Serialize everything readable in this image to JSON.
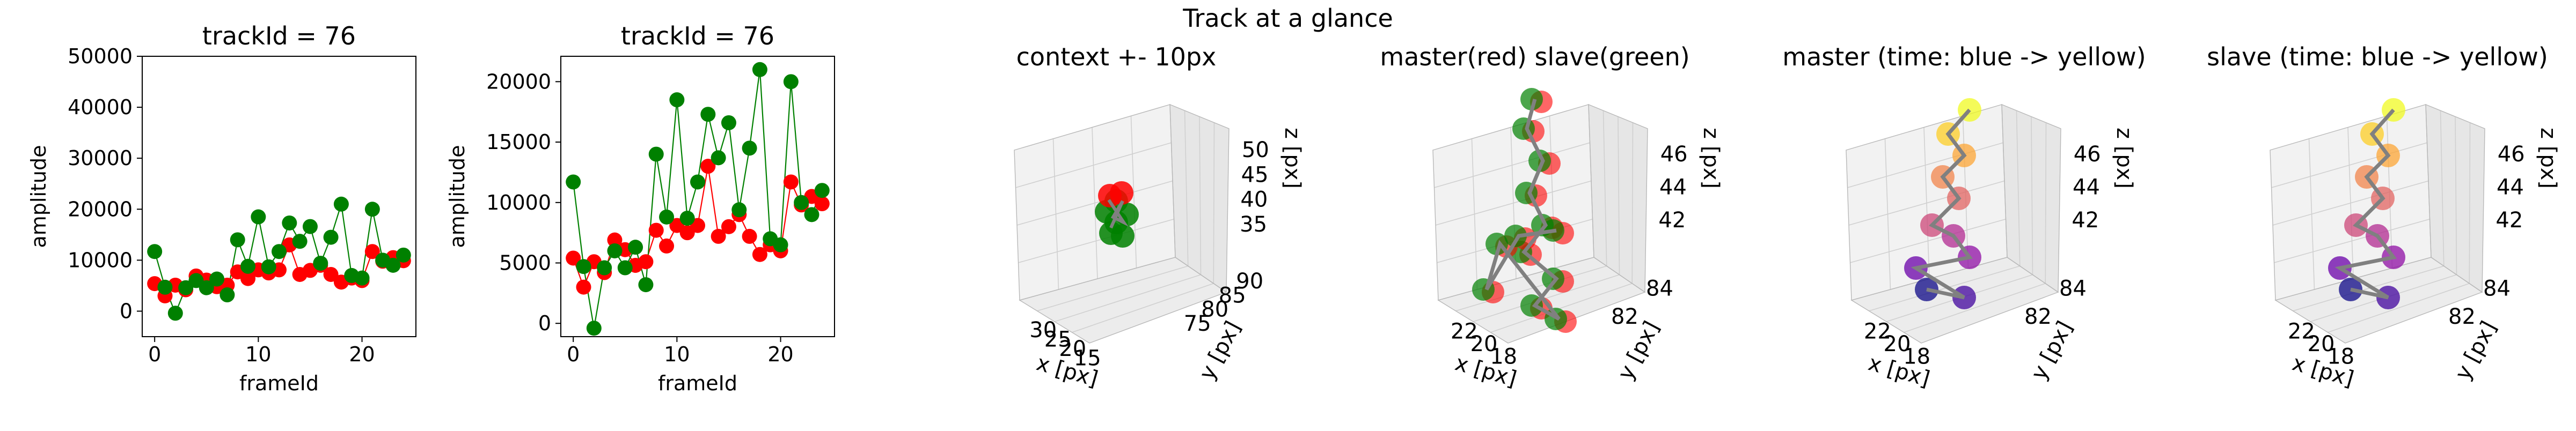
{
  "suptitle": "Track at a glance",
  "chart_data": [
    {
      "type": "line",
      "title": "trackId = 76",
      "xlabel": "frameId",
      "ylabel": "amplitude",
      "xlim": [
        -1.2,
        25.2
      ],
      "ylim": [
        -5000,
        50000
      ],
      "xticks": [
        0,
        10,
        20
      ],
      "yticks": [
        0,
        10000,
        20000,
        30000,
        40000,
        50000
      ],
      "series": [
        {
          "color": "#ff0000",
          "x": [
            0,
            1,
            2,
            3,
            4,
            5,
            6,
            7,
            8,
            9,
            10,
            11,
            12,
            13,
            14,
            15,
            16,
            17,
            18,
            19,
            20,
            21,
            22,
            23,
            24
          ],
          "values": [
            5400,
            3000,
            5100,
            4200,
            6900,
            6100,
            4800,
            5100,
            7700,
            6400,
            8100,
            7500,
            8100,
            13000,
            7200,
            8000,
            9000,
            7200,
            5700,
            6500,
            6000,
            11700,
            9800,
            10500,
            9900
          ]
        },
        {
          "color": "#008000",
          "x": [
            0,
            1,
            2,
            3,
            4,
            5,
            6,
            7,
            8,
            9,
            10,
            11,
            12,
            13,
            14,
            15,
            16,
            17,
            18,
            19,
            20,
            21,
            22,
            23,
            24
          ],
          "values": [
            11700,
            4700,
            -400,
            4600,
            6000,
            4600,
            6300,
            3200,
            14000,
            8800,
            18500,
            8700,
            11700,
            17300,
            13700,
            16600,
            9400,
            14500,
            21000,
            7000,
            6500,
            20000,
            10000,
            9000,
            11000
          ]
        }
      ]
    },
    {
      "type": "line",
      "title": "trackId = 76",
      "xlabel": "frameId",
      "ylabel": "amplitude",
      "xlim": [
        -1.2,
        25.2
      ],
      "ylim": [
        -1100,
        22100
      ],
      "xticks": [
        0,
        10,
        20
      ],
      "yticks": [
        0,
        5000,
        10000,
        15000,
        20000
      ],
      "series": [
        {
          "color": "#ff0000",
          "x": [
            0,
            1,
            2,
            3,
            4,
            5,
            6,
            7,
            8,
            9,
            10,
            11,
            12,
            13,
            14,
            15,
            16,
            17,
            18,
            19,
            20,
            21,
            22,
            23,
            24
          ],
          "values": [
            5400,
            3000,
            5100,
            4200,
            6900,
            6100,
            4800,
            5100,
            7700,
            6400,
            8100,
            7500,
            8100,
            13000,
            7200,
            8000,
            9000,
            7200,
            5700,
            6500,
            6000,
            11700,
            9800,
            10500,
            9900
          ]
        },
        {
          "color": "#008000",
          "x": [
            0,
            1,
            2,
            3,
            4,
            5,
            6,
            7,
            8,
            9,
            10,
            11,
            12,
            13,
            14,
            15,
            16,
            17,
            18,
            19,
            20,
            21,
            22,
            23,
            24
          ],
          "values": [
            11700,
            4700,
            -400,
            4600,
            6000,
            4600,
            6300,
            3200,
            14000,
            8800,
            18500,
            8700,
            11700,
            17300,
            13700,
            16600,
            9400,
            14500,
            21000,
            7000,
            6500,
            20000,
            10000,
            9000,
            11000
          ]
        }
      ]
    },
    {
      "type": "scatter",
      "projection": "3d",
      "title": "context +- 10px",
      "xlabel": "x [px]",
      "ylabel": "y [px]",
      "zlabel": "z [px]",
      "xticks": [
        15,
        20,
        25,
        30
      ],
      "yticks": [
        75,
        80,
        85,
        90
      ],
      "zticks": [
        35,
        40,
        45,
        50
      ],
      "series": [
        {
          "color": "#008000"
        },
        {
          "color": "#ff0000"
        }
      ]
    },
    {
      "type": "scatter",
      "projection": "3d",
      "title": "master(red) slave(green)",
      "xlabel": "x [px]",
      "ylabel": "y [px]",
      "zlabel": "z [px]",
      "xticks": [
        18,
        20,
        22
      ],
      "yticks": [
        82,
        84
      ],
      "zticks": [
        42,
        44,
        46
      ],
      "series": [
        {
          "color": "#ff0000"
        },
        {
          "color": "#008000"
        }
      ]
    },
    {
      "type": "scatter",
      "projection": "3d",
      "title": "master (time: blue -> yellow)",
      "xlabel": "x [px]",
      "ylabel": "y [px]",
      "zlabel": "z [px]",
      "xticks": [
        18,
        20,
        22
      ],
      "yticks": [
        82,
        84
      ],
      "zticks": [
        42,
        44,
        46
      ],
      "colormap": "plasma"
    },
    {
      "type": "scatter",
      "projection": "3d",
      "title": "slave (time: blue -> yellow)",
      "xlabel": "x [px]",
      "ylabel": "y [px]",
      "zlabel": "z [px]",
      "xticks": [
        18,
        20,
        22
      ],
      "yticks": [
        82,
        84
      ],
      "zticks": [
        42,
        44,
        46
      ],
      "colormap": "plasma"
    }
  ]
}
